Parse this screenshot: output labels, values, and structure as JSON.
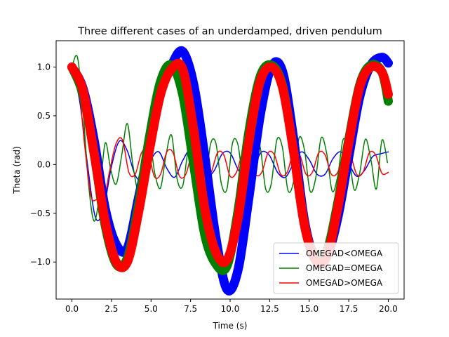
{
  "chart_data": {
    "type": "line",
    "title": "Three different cases of an underdamped, driven pendulum",
    "xlabel": "Time (s)",
    "ylabel": "Theta (rad)",
    "xlim": [
      -1.0,
      21.0
    ],
    "ylim": [
      -1.38,
      1.27
    ],
    "xticks": [
      0.0,
      2.5,
      5.0,
      7.5,
      10.0,
      12.5,
      15.0,
      17.5,
      20.0
    ],
    "xtick_labels": [
      "0.0",
      "2.5",
      "5.0",
      "7.5",
      "10.0",
      "12.5",
      "15.0",
      "17.5",
      "20.0"
    ],
    "yticks": [
      -1.0,
      -0.5,
      0.0,
      0.5,
      1.0
    ],
    "ytick_labels": [
      "−1.0",
      "−0.5",
      "0.0",
      "0.5",
      "1.0"
    ],
    "grid": false,
    "legend_position": "lower-right",
    "series": [
      {
        "name": "OMEGAD<OMEGA",
        "color": "#0000ff",
        "style": "thin-line",
        "x": [
          0.0,
          0.5,
          1.0,
          1.5,
          2.0,
          2.5,
          3.0,
          3.5,
          4.0,
          4.5,
          5.0,
          5.5,
          6.0,
          6.5,
          7.0,
          7.5,
          8.0,
          8.5,
          9.0,
          9.5,
          10.0,
          10.5,
          11.0,
          11.5,
          12.0,
          12.5,
          13.0,
          13.5,
          14.0,
          14.5,
          15.0,
          15.5,
          16.0,
          16.5,
          17.0,
          17.5,
          18.0,
          18.5,
          19.0,
          19.5,
          20.0
        ],
        "y": [
          1.0,
          0.64,
          -0.02,
          -0.55,
          -0.45,
          -0.02,
          0.24,
          0.14,
          -0.11,
          -0.16,
          0.05,
          0.13,
          -0.04,
          -0.13,
          0.04,
          0.15,
          0.0,
          -0.13,
          -0.06,
          0.11,
          0.12,
          -0.05,
          -0.14,
          -0.02,
          0.13,
          0.09,
          -0.08,
          -0.13,
          0.01,
          0.13,
          0.05,
          -0.1,
          -0.1,
          0.06,
          0.13,
          0.01,
          -0.12,
          -0.06,
          0.08,
          0.11,
          0.13
        ]
      },
      {
        "name": "OMEGAD=OMEGA",
        "color": "#008000",
        "style": "thin-line",
        "x": [
          0.0,
          0.35,
          0.7,
          1.05,
          1.4,
          1.75,
          2.1,
          2.45,
          2.8,
          3.15,
          3.5,
          3.85,
          4.2,
          4.55,
          4.9,
          5.25,
          5.6,
          5.95,
          6.3,
          6.65,
          7.0,
          7.35,
          7.7,
          8.05,
          8.4,
          8.75,
          9.1,
          9.45,
          9.8,
          10.15,
          10.5,
          10.85,
          11.2,
          11.55,
          11.9,
          12.25,
          12.6,
          12.95,
          13.3,
          13.65,
          14.0,
          14.35,
          14.7,
          15.05,
          15.4,
          15.75,
          16.1,
          16.45,
          16.8,
          17.15,
          17.5,
          17.85,
          18.2,
          18.55,
          18.9,
          19.25,
          19.6,
          19.95
        ],
        "y": [
          1.0,
          1.1,
          0.55,
          -0.2,
          -0.58,
          -0.3,
          0.22,
          -0.05,
          -0.2,
          0.1,
          0.42,
          0.0,
          -0.26,
          0.05,
          0.25,
          -0.1,
          -0.24,
          0.1,
          0.3,
          -0.15,
          -0.22,
          0.15,
          0.26,
          -0.15,
          -0.25,
          0.2,
          0.22,
          -0.2,
          -0.25,
          0.22,
          0.2,
          -0.22,
          -0.24,
          0.25,
          0.18,
          -0.25,
          -0.2,
          0.25,
          0.18,
          -0.26,
          -0.18,
          0.27,
          0.15,
          -0.27,
          -0.15,
          0.27,
          0.12,
          -0.27,
          -0.12,
          0.26,
          0.1,
          -0.26,
          -0.08,
          0.26,
          0.05,
          -0.25,
          0.25,
          0.02
        ]
      },
      {
        "name": "OMEGAD>OMEGA",
        "color": "#ff0000",
        "style": "thin-line",
        "x": [
          0.0,
          0.4,
          0.8,
          1.2,
          1.6,
          2.0,
          2.4,
          2.8,
          3.2,
          3.6,
          4.0,
          4.4,
          4.8,
          5.2,
          5.6,
          6.0,
          6.4,
          6.8,
          7.2,
          7.6,
          8.0,
          8.4,
          8.8,
          9.2,
          9.6,
          10.0,
          10.4,
          10.8,
          11.2,
          11.6,
          12.0,
          12.4,
          12.8,
          13.2,
          13.6,
          14.0,
          14.4,
          14.8,
          15.2,
          15.6,
          16.0,
          16.4,
          16.8,
          17.2,
          17.6,
          18.0,
          18.4,
          18.8,
          19.2,
          19.6,
          20.0
        ],
        "y": [
          1.0,
          0.85,
          0.2,
          -0.32,
          -0.36,
          -0.38,
          -0.05,
          0.22,
          0.25,
          -0.08,
          -0.1,
          0.12,
          0.15,
          -0.12,
          -0.1,
          0.13,
          0.12,
          -0.12,
          -0.1,
          0.12,
          0.1,
          -0.12,
          -0.08,
          0.12,
          0.1,
          -0.12,
          -0.08,
          0.12,
          0.1,
          -0.1,
          -0.08,
          0.12,
          0.1,
          -0.1,
          -0.08,
          0.12,
          0.1,
          -0.1,
          -0.08,
          0.12,
          0.1,
          -0.1,
          -0.08,
          0.12,
          0.1,
          -0.1,
          -0.08,
          0.12,
          0.1,
          -0.09,
          -0.08
        ]
      },
      {
        "name": "",
        "color": "#0000ff",
        "style": "thick-band",
        "x": [
          0.0,
          0.7,
          1.4,
          2.1,
          2.8,
          3.5,
          4.2,
          4.9,
          5.6,
          6.3,
          7.0,
          7.7,
          8.4,
          9.1,
          9.8,
          10.5,
          11.2,
          11.9,
          12.6,
          13.3,
          14.0,
          14.7,
          15.4,
          16.1,
          16.8,
          17.5,
          18.2,
          18.9,
          19.6,
          20.0
        ],
        "y": [
          1.0,
          0.78,
          0.25,
          -0.45,
          -0.82,
          -0.86,
          -0.35,
          0.18,
          0.72,
          1.02,
          1.16,
          0.82,
          0.08,
          -0.75,
          -1.28,
          -1.08,
          -0.32,
          0.5,
          1.0,
          0.96,
          0.28,
          -0.58,
          -0.97,
          -0.95,
          -0.55,
          0.08,
          0.7,
          1.02,
          1.1,
          1.04
        ]
      },
      {
        "name": "",
        "color": "#008000",
        "style": "thick-band",
        "x": [
          0.0,
          0.7,
          1.4,
          2.1,
          2.8,
          3.5,
          4.2,
          4.9,
          5.6,
          6.3,
          7.0,
          7.7,
          8.4,
          9.1,
          9.8,
          10.5,
          11.2,
          11.9,
          12.6,
          13.3,
          14.0,
          14.7,
          15.4,
          16.1,
          16.8,
          17.5,
          18.2,
          18.9,
          19.6,
          20.0
        ],
        "y": [
          1.0,
          0.72,
          0.12,
          -0.62,
          -1.02,
          -0.96,
          -0.42,
          0.28,
          0.85,
          1.02,
          0.72,
          0.0,
          -0.72,
          -1.02,
          -1.04,
          -0.48,
          0.35,
          0.9,
          1.02,
          0.82,
          0.15,
          -0.62,
          -0.96,
          -0.9,
          -0.4,
          0.25,
          0.82,
          1.02,
          0.95,
          0.65
        ]
      },
      {
        "name": "",
        "color": "#ff0000",
        "style": "thick-band",
        "x": [
          0.0,
          0.7,
          1.4,
          2.1,
          2.8,
          3.5,
          4.2,
          4.9,
          5.6,
          6.3,
          7.0,
          7.7,
          8.4,
          9.1,
          9.8,
          10.5,
          11.2,
          11.9,
          12.6,
          13.3,
          14.0,
          14.7,
          15.4,
          16.1,
          16.8,
          17.5,
          18.2,
          18.9,
          19.6,
          20.0
        ],
        "y": [
          1.0,
          0.76,
          0.12,
          -0.58,
          -1.0,
          -1.0,
          -0.5,
          0.15,
          0.72,
          0.98,
          0.98,
          0.35,
          -0.45,
          -0.9,
          -0.98,
          -0.55,
          0.25,
          0.85,
          1.0,
          0.8,
          0.15,
          -0.62,
          -0.98,
          -0.95,
          -0.45,
          0.22,
          0.8,
          1.0,
          0.95,
          0.72
        ]
      }
    ]
  }
}
